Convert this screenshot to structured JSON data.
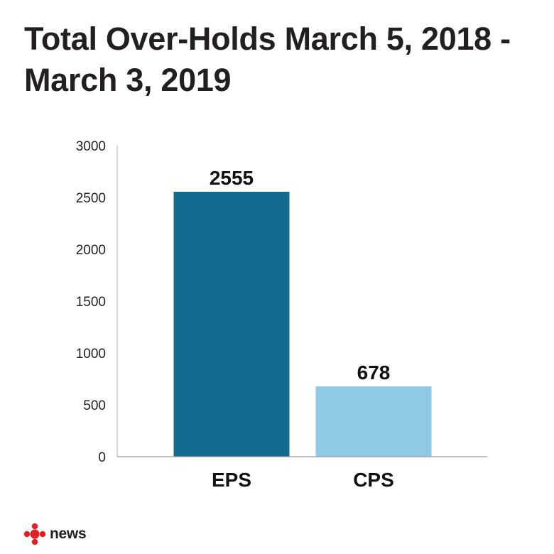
{
  "chart_data": {
    "type": "bar",
    "title": "Total Over-Holds March 5, 2018 - March 3, 2019",
    "categories": [
      "EPS",
      "CPS"
    ],
    "values": [
      2555,
      678
    ],
    "data_labels": [
      "2555",
      "678"
    ],
    "bar_colors": [
      "#156a8f",
      "#8ec9e6"
    ],
    "ylim": [
      0,
      3000
    ],
    "yticks": [
      0,
      500,
      1000,
      1500,
      2000,
      2500,
      3000
    ],
    "ytick_labels": [
      "0",
      "500",
      "1000",
      "1500",
      "2000",
      "2500",
      "3000"
    ],
    "xlabel": "",
    "ylabel": "",
    "grid": false
  },
  "branding": {
    "logo_text": "news",
    "logo_icon": "cbc-gem-icon",
    "logo_color": "#e31e24"
  }
}
